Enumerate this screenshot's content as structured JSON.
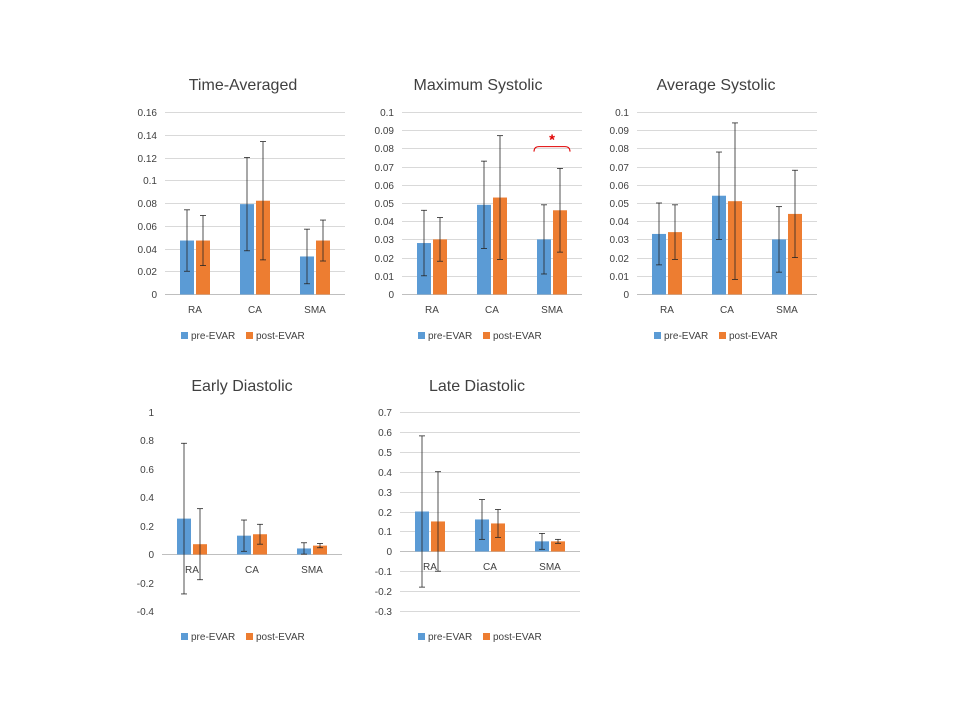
{
  "colors": {
    "pre": "#5b9bd5",
    "post": "#ed7d31",
    "significance": "#e00000"
  },
  "legend": {
    "pre_label": "pre-EVAR",
    "post_label": "post-EVAR"
  },
  "chart_data": [
    {
      "type": "bar",
      "title": "Time-Averaged",
      "categories": [
        "RA",
        "CA",
        "SMA"
      ],
      "ylim": [
        0,
        0.16
      ],
      "yticks": [
        0,
        0.02,
        0.04,
        0.06,
        0.08,
        0.1,
        0.12,
        0.14,
        0.16
      ],
      "ytick_labels": [
        "0",
        "0.02",
        "0.04",
        "0.06",
        "0.08",
        "0.1",
        "0.12",
        "0.14",
        "0.16"
      ],
      "grid": true,
      "legend": "bottom",
      "series": [
        {
          "name": "pre-EVAR",
          "values": [
            0.047,
            0.079,
            0.033
          ],
          "errors": [
            0.027,
            0.041,
            0.024
          ]
        },
        {
          "name": "post-EVAR",
          "values": [
            0.047,
            0.082,
            0.047
          ],
          "errors": [
            0.022,
            0.052,
            0.018
          ]
        }
      ]
    },
    {
      "type": "bar",
      "title": "Maximum Systolic",
      "categories": [
        "RA",
        "CA",
        "SMA"
      ],
      "ylim": [
        0,
        0.1
      ],
      "yticks": [
        0,
        0.01,
        0.02,
        0.03,
        0.04,
        0.05,
        0.06,
        0.07,
        0.08,
        0.09,
        0.1
      ],
      "ytick_labels": [
        "0",
        "0.01",
        "0.02",
        "0.03",
        "0.04",
        "0.05",
        "0.06",
        "0.07",
        "0.08",
        "0.09",
        "0.1"
      ],
      "grid": true,
      "legend": "bottom",
      "significance": {
        "between": "SMA",
        "label": "*"
      },
      "series": [
        {
          "name": "pre-EVAR",
          "values": [
            0.028,
            0.049,
            0.03
          ],
          "errors": [
            0.018,
            0.024,
            0.019
          ]
        },
        {
          "name": "post-EVAR",
          "values": [
            0.03,
            0.053,
            0.046
          ],
          "errors": [
            0.012,
            0.034,
            0.023
          ]
        }
      ]
    },
    {
      "type": "bar",
      "title": "Average Systolic",
      "categories": [
        "RA",
        "CA",
        "SMA"
      ],
      "ylim": [
        0,
        0.1
      ],
      "yticks": [
        0,
        0.01,
        0.02,
        0.03,
        0.04,
        0.05,
        0.06,
        0.07,
        0.08,
        0.09,
        0.1
      ],
      "ytick_labels": [
        "0",
        "0.01",
        "0.02",
        "0.03",
        "0.04",
        "0.05",
        "0.06",
        "0.07",
        "0.08",
        "0.09",
        "0.1"
      ],
      "grid": true,
      "legend": "bottom",
      "series": [
        {
          "name": "pre-EVAR",
          "values": [
            0.033,
            0.054,
            0.03
          ],
          "errors": [
            0.017,
            0.024,
            0.018
          ]
        },
        {
          "name": "post-EVAR",
          "values": [
            0.034,
            0.051,
            0.044
          ],
          "errors": [
            0.015,
            0.043,
            0.024
          ]
        }
      ]
    },
    {
      "type": "bar",
      "title": "Early Diastolic",
      "categories": [
        "RA",
        "CA",
        "SMA"
      ],
      "ylim": [
        -0.4,
        1
      ],
      "yticks": [
        -0.4,
        -0.2,
        0,
        0.2,
        0.4,
        0.6,
        0.8,
        1
      ],
      "ytick_labels": [
        "-0.4",
        "-0.2",
        "0",
        "0.2",
        "0.4",
        "0.6",
        "0.8",
        "1"
      ],
      "grid": false,
      "legend": "bottom",
      "series": [
        {
          "name": "pre-EVAR",
          "values": [
            0.25,
            0.13,
            0.04
          ],
          "errors": [
            0.53,
            0.11,
            0.04
          ]
        },
        {
          "name": "post-EVAR",
          "values": [
            0.07,
            0.14,
            0.06
          ],
          "errors": [
            0.25,
            0.07,
            0.015
          ]
        }
      ]
    },
    {
      "type": "bar",
      "title": "Late Diastolic",
      "categories": [
        "RA",
        "CA",
        "SMA"
      ],
      "ylim": [
        -0.3,
        0.7
      ],
      "yticks": [
        -0.3,
        -0.2,
        -0.1,
        0,
        0.1,
        0.2,
        0.3,
        0.4,
        0.5,
        0.6,
        0.7
      ],
      "ytick_labels": [
        "-0.3",
        "-0.2",
        "-0.1",
        "0",
        "0.1",
        "0.2",
        "0.3",
        "0.4",
        "0.5",
        "0.6",
        "0.7"
      ],
      "grid": true,
      "legend": "bottom",
      "series": [
        {
          "name": "pre-EVAR",
          "values": [
            0.2,
            0.16,
            0.05
          ],
          "errors": [
            0.38,
            0.1,
            0.04
          ]
        },
        {
          "name": "post-EVAR",
          "values": [
            0.15,
            0.14,
            0.05
          ],
          "errors": [
            0.25,
            0.07,
            0.01
          ]
        }
      ]
    }
  ]
}
